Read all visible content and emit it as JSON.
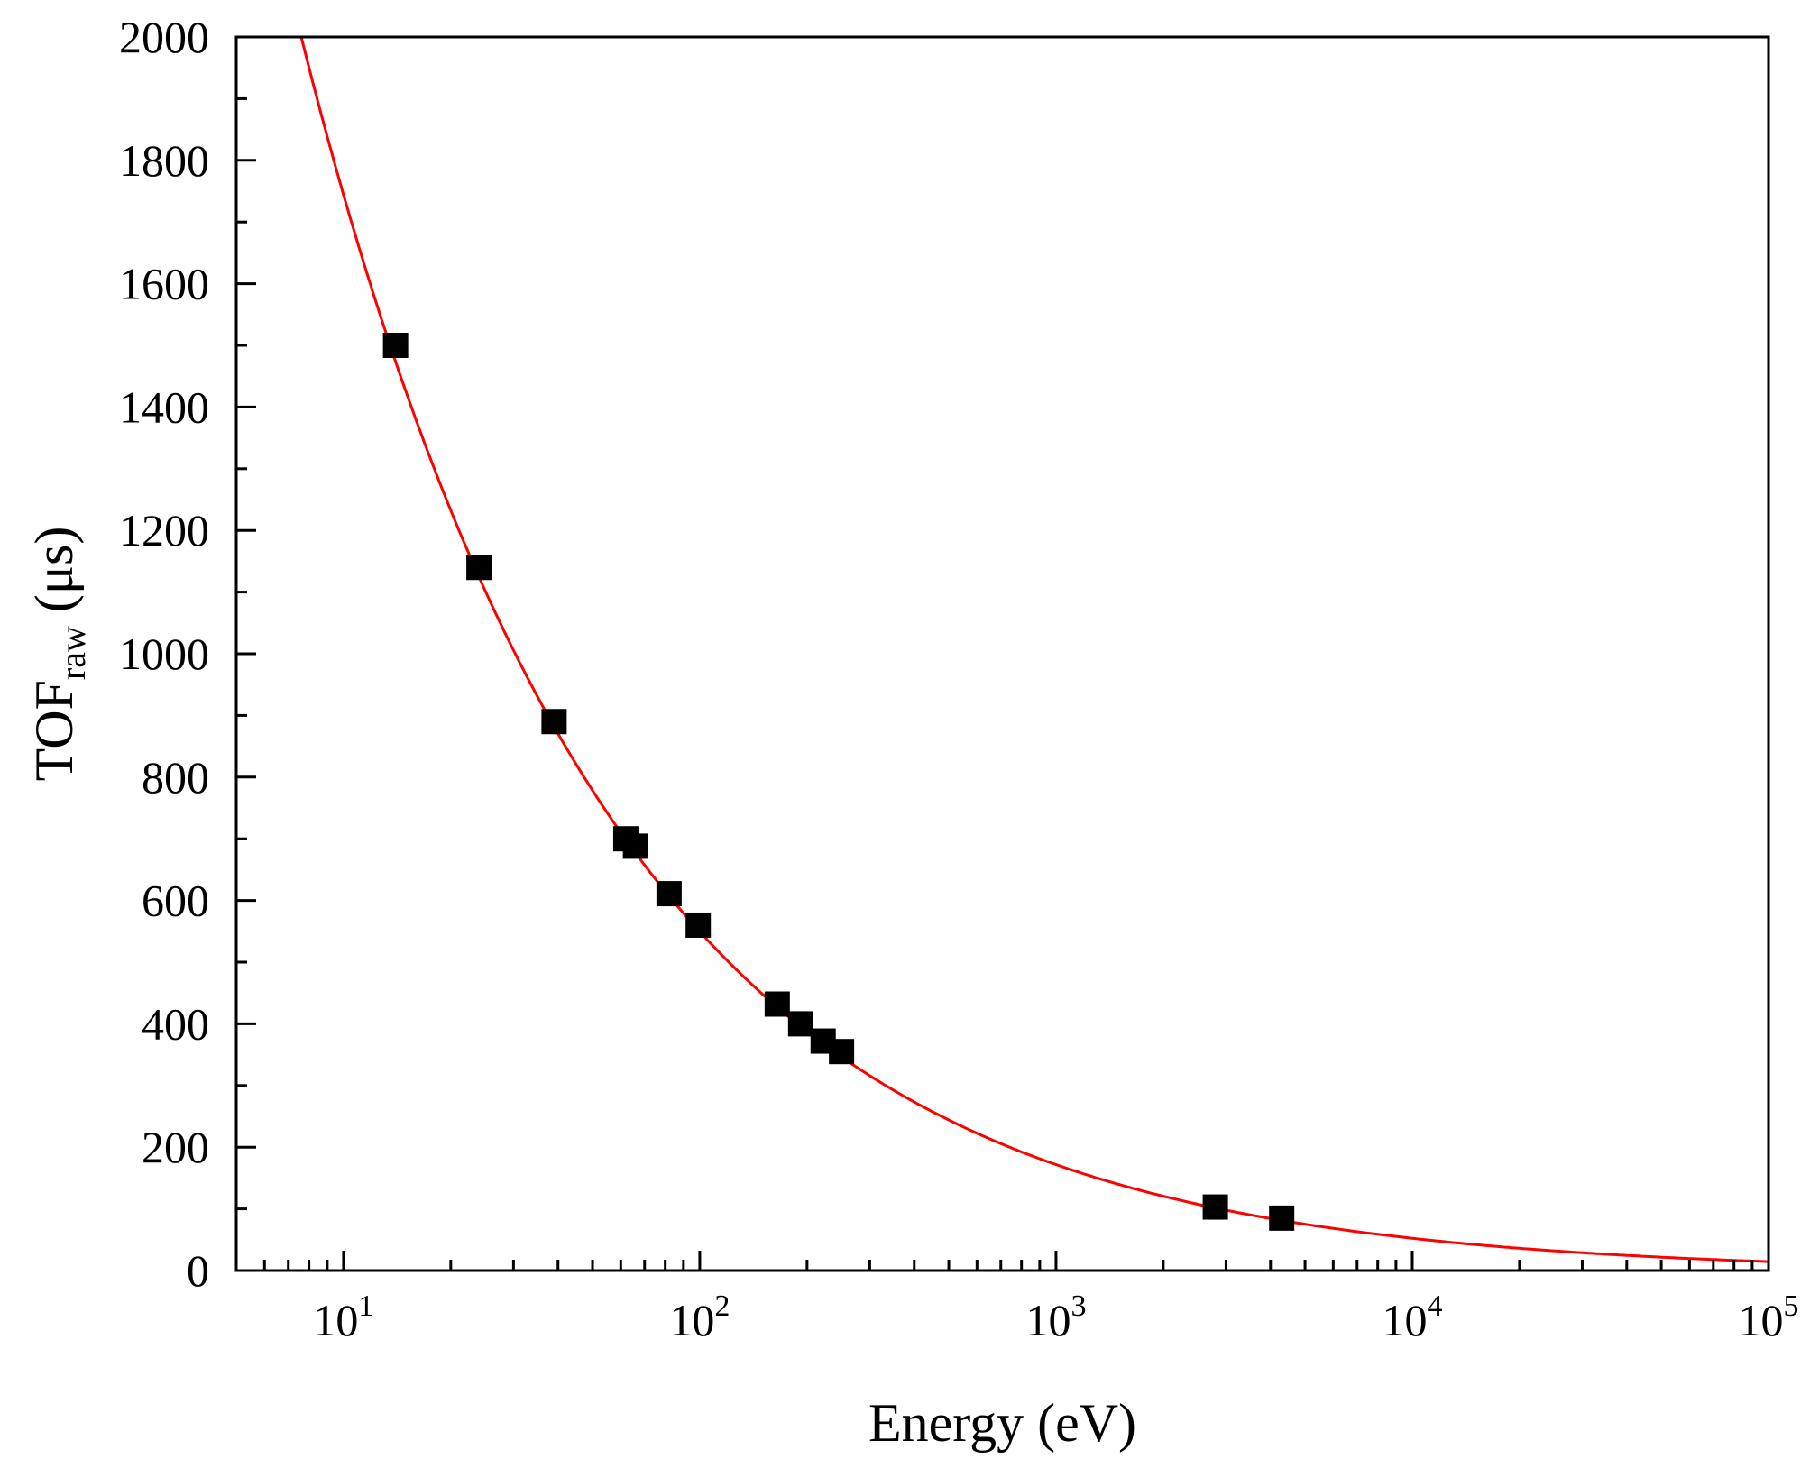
{
  "chart_data": {
    "type": "scatter",
    "title": "",
    "xlabel": "Energy (eV)",
    "ylabel": {
      "main": "TOF",
      "subscript": "raw",
      "unit": "(μs)"
    },
    "x_scale": "log",
    "xlim": [
      5,
      100000
    ],
    "ylim": [
      0,
      2000
    ],
    "grid": false,
    "legend": "none",
    "x_ticks": [
      {
        "value": 10,
        "base": "10",
        "exp": "1"
      },
      {
        "value": 100,
        "base": "10",
        "exp": "2"
      },
      {
        "value": 1000,
        "base": "10",
        "exp": "3"
      },
      {
        "value": 10000,
        "base": "10",
        "exp": "4"
      },
      {
        "value": 100000,
        "base": "10",
        "exp": "5"
      }
    ],
    "y_ticks": [
      0,
      200,
      400,
      600,
      800,
      1000,
      1200,
      1400,
      1600,
      1800,
      2000
    ],
    "y_tick_labels": [
      "0",
      "200",
      "400",
      "600",
      "800",
      "1000",
      "1200",
      "1400",
      "1600",
      "1800",
      "2000"
    ],
    "series": [
      {
        "marker": "square",
        "color": "#000000",
        "x": [
          14,
          24,
          39,
          62,
          66,
          82,
          99,
          165,
          192,
          222,
          250,
          2800,
          4300
        ],
        "y": [
          1500,
          1140,
          890,
          700,
          688,
          611,
          560,
          432,
          400,
          372,
          355,
          103,
          85
        ]
      }
    ],
    "fit_curve": {
      "color": "#ff0000",
      "form": "y = a / sqrt(x) + b",
      "a": 5525,
      "b": -3
    }
  }
}
